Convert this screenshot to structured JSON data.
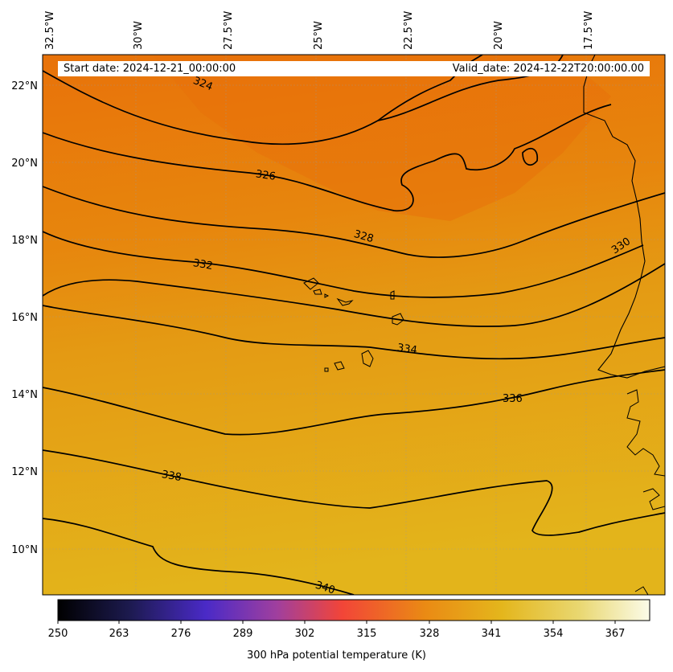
{
  "header": {
    "start_date": "Start date: 2024-12-21_00:00:00",
    "valid_date": "Valid_date: 2024-12-22T20:00:00.00"
  },
  "map": {
    "lon_labels": [
      "32.5°W",
      "30°W",
      "27.5°W",
      "25°W",
      "22.5°W",
      "20°W",
      "17.5°W"
    ],
    "lat_labels": [
      "22°N",
      "20°N",
      "18°N",
      "16°N",
      "14°N",
      "12°N",
      "10°N"
    ],
    "field_colors": {
      "north": "#e8760a",
      "middle": "#e49412",
      "south": "#e3b21a"
    },
    "contour_labels": [
      "324",
      "326",
      "328",
      "330",
      "332",
      "334",
      "336",
      "338",
      "340"
    ]
  },
  "colorbar": {
    "ticks": [
      "250",
      "263",
      "276",
      "289",
      "302",
      "315",
      "328",
      "341",
      "354",
      "367"
    ],
    "label": "300 hPa potential temperature (K)",
    "colormap": "CMRmap"
  }
}
